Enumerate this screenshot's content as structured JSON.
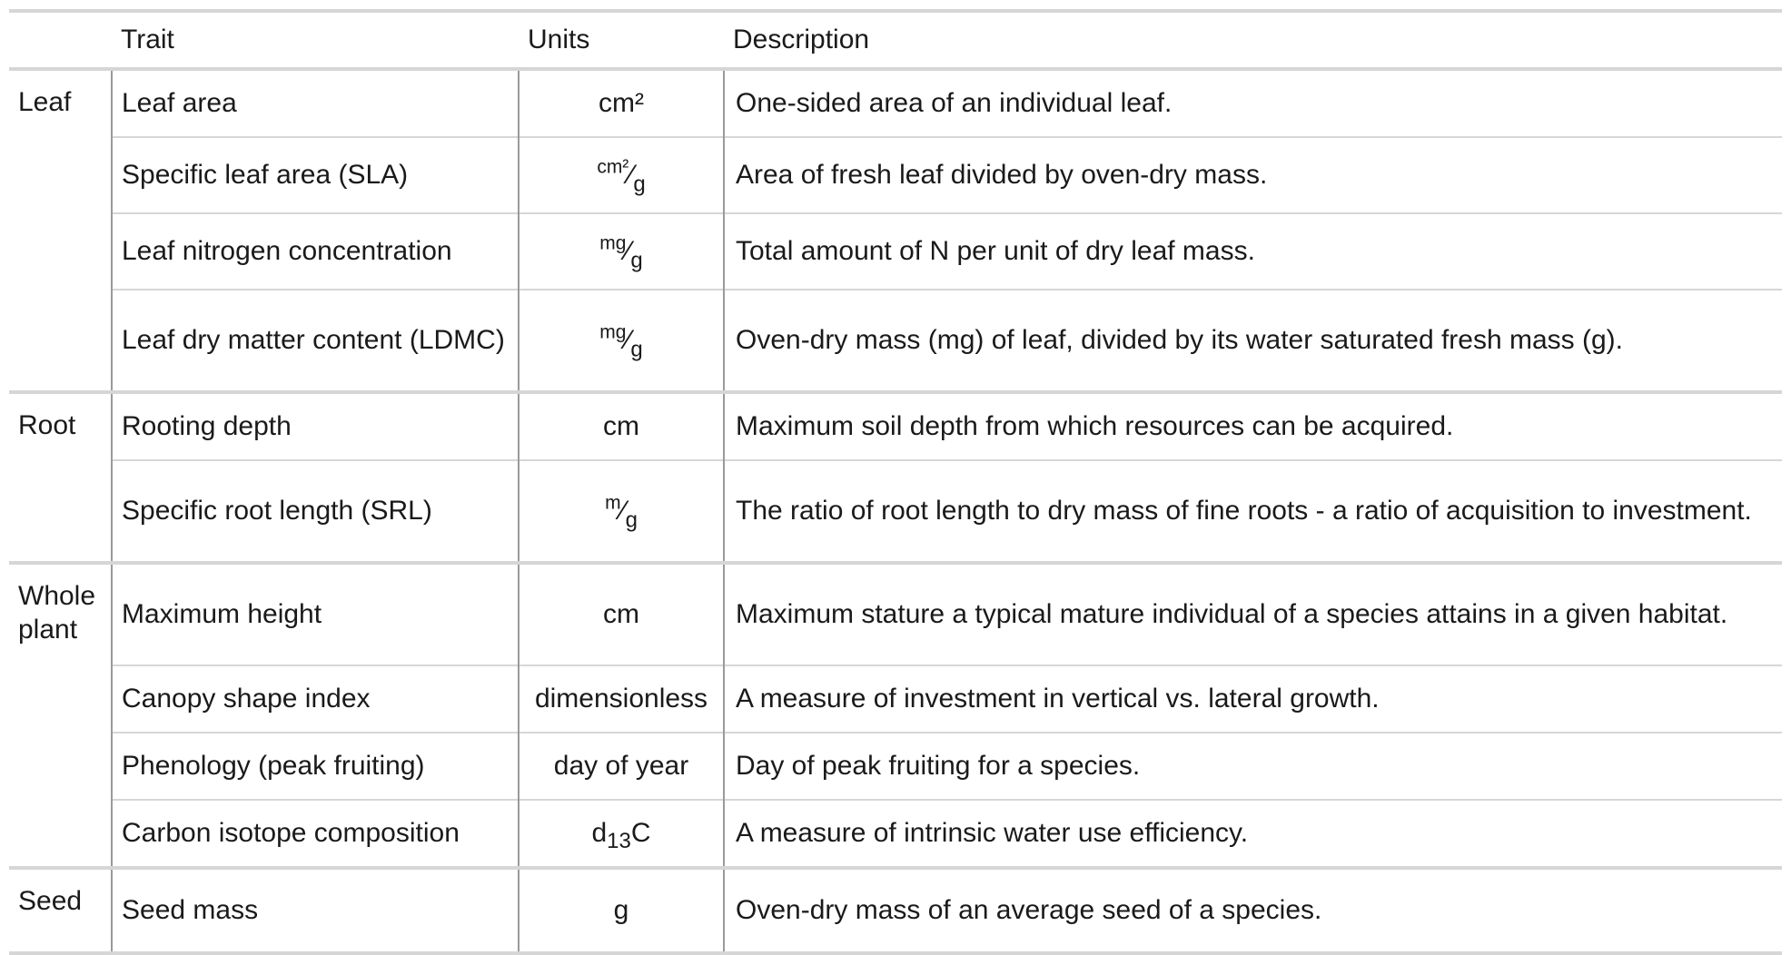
{
  "headers": {
    "group": "",
    "trait": "Trait",
    "units": "Units",
    "description": "Description"
  },
  "groups": [
    {
      "name": "Leaf",
      "rows": [
        {
          "trait": "Leaf area",
          "units": "cm²",
          "description": "One-sided area of an individual leaf."
        },
        {
          "trait": "Specific leaf area (SLA)",
          "units_num": "cm²",
          "units_den": "g",
          "description": "Area of fresh leaf divided by oven-dry mass."
        },
        {
          "trait": "Leaf nitrogen concentration",
          "units_num": "mg",
          "units_den": "g",
          "description": "Total amount of N per unit of dry leaf mass."
        },
        {
          "trait": "Leaf dry matter content (LDMC)",
          "units_num": "mg",
          "units_den": "g",
          "description": "Oven-dry mass (mg) of leaf, divided by its water saturated fresh mass (g)."
        }
      ]
    },
    {
      "name": "Root",
      "rows": [
        {
          "trait": "Rooting depth",
          "units": "cm",
          "description": "Maximum soil depth from which resources can be acquired."
        },
        {
          "trait": "Specific root length (SRL)",
          "units_num": "m",
          "units_den": "g",
          "description": "The ratio of root length to dry mass of fine roots - a ratio of acquisition to investment."
        }
      ]
    },
    {
      "name": "Whole plant",
      "rows": [
        {
          "trait": "Maximum height",
          "units": "cm",
          "description": "Maximum stature a typical mature individual of a species attains in a given habitat."
        },
        {
          "trait": "Canopy shape index",
          "units": "dimensionless",
          "description": "A measure of investment in vertical vs. lateral growth."
        },
        {
          "trait": "Phenology (peak fruiting)",
          "units": "day of year",
          "description": "Day of peak fruiting for a species."
        },
        {
          "trait": "Carbon isotope composition",
          "units_base": "d",
          "units_sub": "13",
          "units_tail": "C",
          "description": "A measure of intrinsic water use efficiency."
        }
      ]
    },
    {
      "name": "Seed",
      "rows": [
        {
          "trait": "Seed mass",
          "units": "g",
          "description": "Oven-dry mass of an average seed of a species."
        }
      ]
    }
  ]
}
